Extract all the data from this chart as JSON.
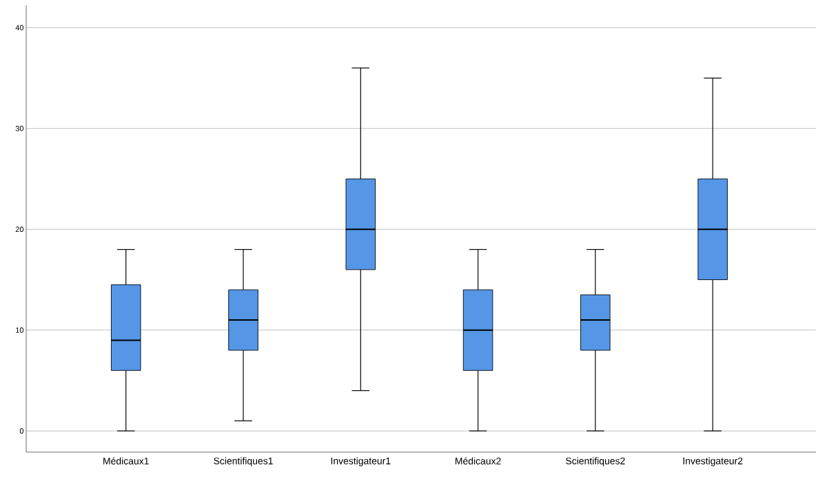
{
  "chart_data": {
    "type": "box",
    "categories": [
      "Médicaux1",
      "Scientifiques1",
      "Investigateur1",
      "Médicaux2",
      "Scientifiques2",
      "Investigateur2"
    ],
    "boxes": [
      {
        "low": 0,
        "q1": 6,
        "median": 9,
        "q3": 14.5,
        "high": 18
      },
      {
        "low": 1,
        "q1": 8,
        "median": 11,
        "q3": 14,
        "high": 18
      },
      {
        "low": 4,
        "q1": 16,
        "median": 20,
        "q3": 25,
        "high": 36
      },
      {
        "low": 0,
        "q1": 6,
        "median": 10,
        "q3": 14,
        "high": 18
      },
      {
        "low": 0,
        "q1": 8,
        "median": 11,
        "q3": 13.5,
        "high": 18
      },
      {
        "low": 0,
        "q1": 15,
        "median": 20,
        "q3": 25,
        "high": 35
      }
    ],
    "color": "#5596e6",
    "ylim": [
      -2.1,
      42.2
    ],
    "yticks": [
      0,
      10,
      20,
      30,
      40
    ],
    "grid": "y"
  }
}
